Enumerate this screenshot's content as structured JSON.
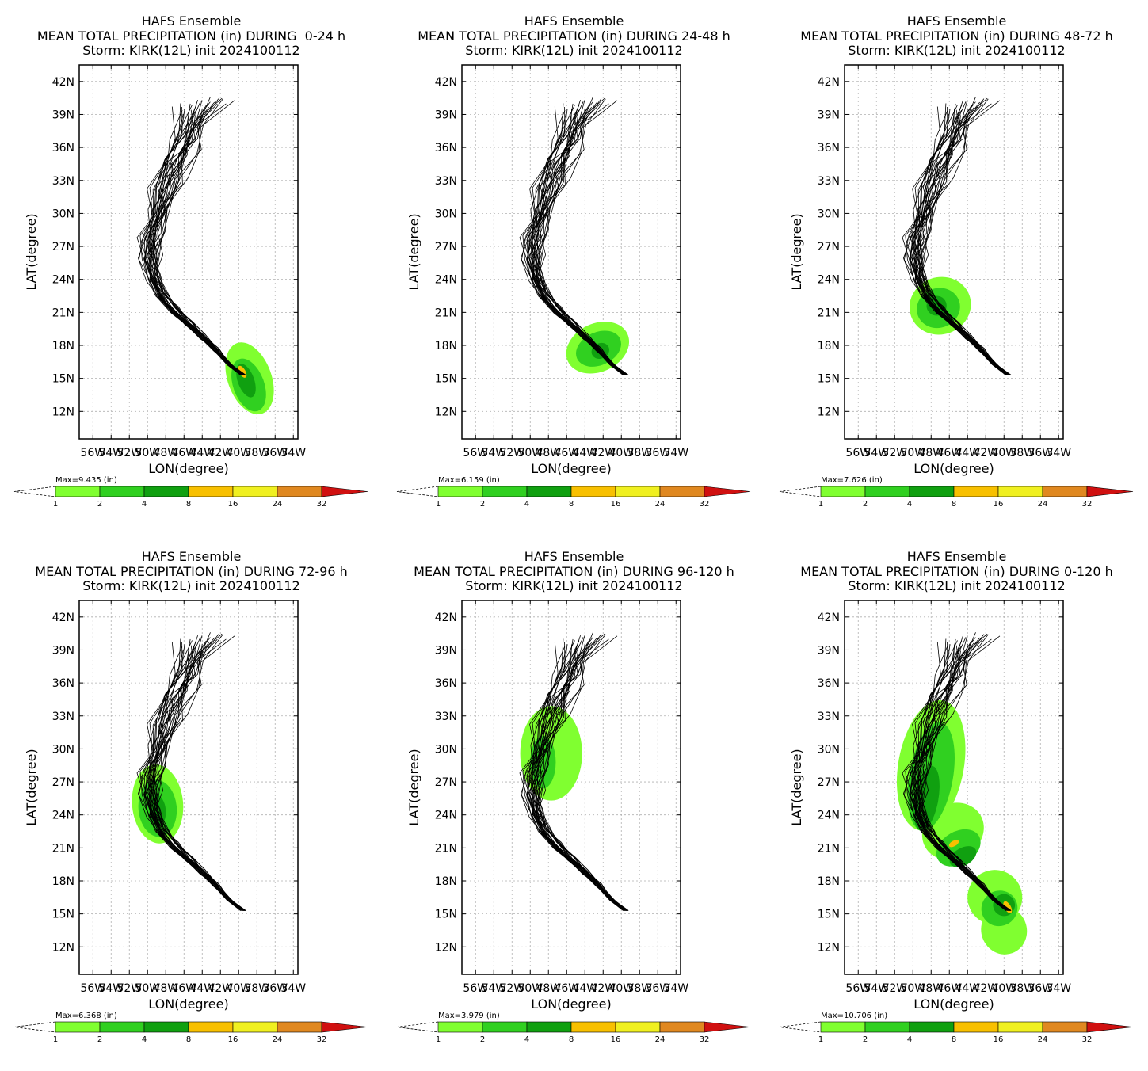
{
  "chart_data": [
    {
      "type": "map",
      "title": "HAFS Ensemble",
      "subtitle": "MEAN TOTAL PRECIPITATION (in) DURING  0-24 h",
      "subtitle2": "Storm: KIRK(12L) init 2024100112",
      "xlabel": "LON(degree)",
      "ylabel": "LAT(degree)",
      "max_label": "Max=9.435   (in)",
      "max_value": 9.435,
      "period": "0-24",
      "track_phase": 0.0
    },
    {
      "type": "map",
      "title": "HAFS Ensemble",
      "subtitle": "MEAN TOTAL PRECIPITATION (in) DURING 24-48 h",
      "subtitle2": "Storm: KIRK(12L) init 2024100112",
      "xlabel": "LON(degree)",
      "ylabel": "LAT(degree)",
      "max_label": "Max=6.159   (in)",
      "max_value": 6.159,
      "period": "24-48",
      "track_phase": 1.0
    },
    {
      "type": "map",
      "title": "HAFS Ensemble",
      "subtitle": "MEAN TOTAL PRECIPITATION (in) DURING 48-72 h",
      "subtitle2": "Storm: KIRK(12L) init 2024100112",
      "xlabel": "LON(degree)",
      "ylabel": "LAT(degree)",
      "max_label": "Max=7.626   (in)",
      "max_value": 7.626,
      "period": "48-72",
      "track_phase": 2.0
    },
    {
      "type": "map",
      "title": "HAFS Ensemble",
      "subtitle": "MEAN TOTAL PRECIPITATION (in) DURING 72-96 h",
      "subtitle2": "Storm: KIRK(12L) init 2024100112",
      "xlabel": "LON(degree)",
      "ylabel": "LAT(degree)",
      "max_label": "Max=6.368   (in)",
      "max_value": 6.368,
      "period": "72-96",
      "track_phase": 3.0
    },
    {
      "type": "map",
      "title": "HAFS Ensemble",
      "subtitle": "MEAN TOTAL PRECIPITATION (in) DURING 96-120 h",
      "subtitle2": "Storm: KIRK(12L) init 2024100112",
      "xlabel": "LON(degree)",
      "ylabel": "LAT(degree)",
      "max_label": "Max=3.979   (in)",
      "max_value": 3.979,
      "period": "96-120",
      "track_phase": 4.0
    },
    {
      "type": "map",
      "title": "HAFS Ensemble",
      "subtitle": "MEAN TOTAL PRECIPITATION (in) DURING 0-120 h",
      "subtitle2": "Storm: KIRK(12L) init 2024100112",
      "xlabel": "LON(degree)",
      "ylabel": "LAT(degree)",
      "max_label": "Max=10.706  (in)",
      "max_value": 10.706,
      "period": "0-120",
      "track_phase": 5.0
    }
  ],
  "axes": {
    "lat_ticks": [
      "42N",
      "39N",
      "36N",
      "33N",
      "30N",
      "27N",
      "24N",
      "21N",
      "18N",
      "15N",
      "12N"
    ],
    "lat_values": [
      42,
      39,
      36,
      33,
      30,
      27,
      24,
      21,
      18,
      15,
      12
    ],
    "lon_ticks": [
      "56W",
      "54W",
      "52W",
      "50W",
      "48W",
      "46W",
      "44W",
      "42W",
      "40W",
      "38W",
      "36W",
      "34W"
    ],
    "lon_values": [
      56,
      54,
      52,
      50,
      48,
      46,
      44,
      42,
      40,
      38,
      36,
      34
    ],
    "lat_range": [
      9.5,
      43.5
    ],
    "lon_range": [
      57.5,
      33.5
    ]
  },
  "colorbar": {
    "levels": [
      "1",
      "2",
      "4",
      "8",
      "16",
      "24",
      "32"
    ],
    "colors": [
      "#80ff30",
      "#30d020",
      "#10a010",
      "#f8c000",
      "#f0f020",
      "#e08820",
      "#d01010"
    ]
  },
  "track_color": "#000000"
}
